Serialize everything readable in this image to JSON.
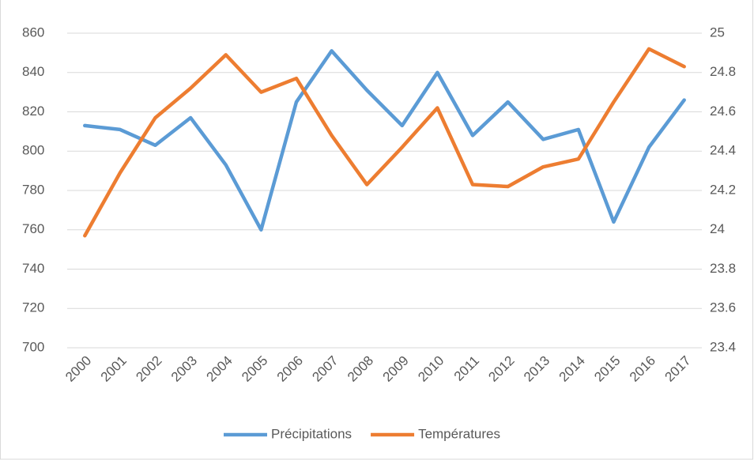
{
  "chart_data": {
    "type": "line",
    "categories": [
      "2000",
      "2001",
      "2002",
      "2003",
      "2004",
      "2005",
      "2006",
      "2007",
      "2008",
      "2009",
      "2010",
      "2011",
      "2012",
      "2013",
      "2014",
      "2015",
      "2016",
      "2017"
    ],
    "series": [
      {
        "name": "Précipitations",
        "color": "#5b9bd5",
        "values": [
          813,
          811,
          803,
          817,
          793,
          760,
          825,
          851,
          831,
          813,
          840,
          808,
          825,
          806,
          811,
          764,
          802,
          826
        ]
      },
      {
        "name": "Températures",
        "color": "#ed7d31",
        "axis": "y2",
        "values": [
          23.97,
          24.29,
          24.57,
          24.72,
          24.89,
          24.7,
          24.77,
          24.48,
          24.23,
          24.42,
          24.62,
          24.23,
          24.22,
          24.32,
          24.36,
          24.65,
          24.92,
          24.83
        ]
      }
    ],
    "ylim": [
      700,
      860
    ],
    "yticks": [
      700,
      720,
      740,
      760,
      780,
      800,
      820,
      840,
      860
    ],
    "y2lim": [
      23.4,
      25
    ],
    "y2ticks": [
      23.4,
      23.6,
      23.8,
      24,
      24.2,
      24.4,
      24.6,
      24.8,
      25
    ],
    "grid": true,
    "legend": "bottom"
  }
}
